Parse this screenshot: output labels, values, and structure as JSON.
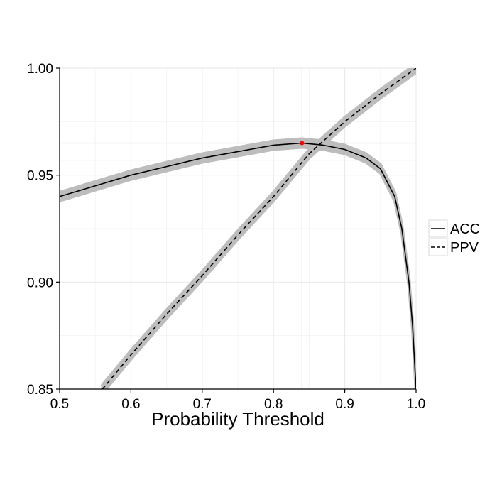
{
  "chart_data": {
    "type": "line",
    "title": "",
    "xlabel": "Probability Threshold",
    "ylabel": "",
    "xlim": [
      0.5,
      1.0
    ],
    "ylim": [
      0.85,
      1.0
    ],
    "x_ticks": [
      0.5,
      0.6,
      0.7,
      0.8,
      0.9,
      1.0
    ],
    "x_tick_labels": [
      "0.5",
      "0.6",
      "0.7",
      "0.8",
      "0.9",
      "1.0"
    ],
    "y_ticks": [
      0.85,
      0.9,
      0.95,
      1.0
    ],
    "y_tick_labels": [
      "0.85",
      "0.90",
      "0.95",
      "1.00"
    ],
    "grid": true,
    "legend_position": "right",
    "legend": [
      {
        "label": "ACC",
        "linetype": "solid"
      },
      {
        "label": "PPV",
        "linetype": "dashed"
      }
    ],
    "reference_lines": [
      {
        "orientation": "vertical",
        "x": 0.84
      },
      {
        "orientation": "horizontal",
        "y": 0.965
      },
      {
        "orientation": "horizontal",
        "y": 0.957
      }
    ],
    "highlight_point": {
      "x": 0.84,
      "y": 0.965,
      "color": "#ff0000"
    },
    "band_color": "#bdbdbd",
    "band_halfwidth": 0.002,
    "series": [
      {
        "name": "ACC",
        "linetype": "solid",
        "x": [
          0.5,
          0.55,
          0.6,
          0.65,
          0.7,
          0.75,
          0.8,
          0.84,
          0.87,
          0.9,
          0.93,
          0.95,
          0.97,
          0.98,
          0.99,
          0.995,
          1.0
        ],
        "y": [
          0.94,
          0.945,
          0.95,
          0.954,
          0.958,
          0.961,
          0.964,
          0.965,
          0.964,
          0.962,
          0.958,
          0.953,
          0.94,
          0.925,
          0.9,
          0.88,
          0.85
        ]
      },
      {
        "name": "PPV",
        "linetype": "dashed",
        "x": [
          0.56,
          0.6,
          0.65,
          0.7,
          0.75,
          0.8,
          0.85,
          0.9,
          0.95,
          1.0
        ],
        "y": [
          0.85,
          0.866,
          0.885,
          0.903,
          0.922,
          0.94,
          0.96,
          0.975,
          0.988,
          1.0
        ]
      }
    ]
  }
}
